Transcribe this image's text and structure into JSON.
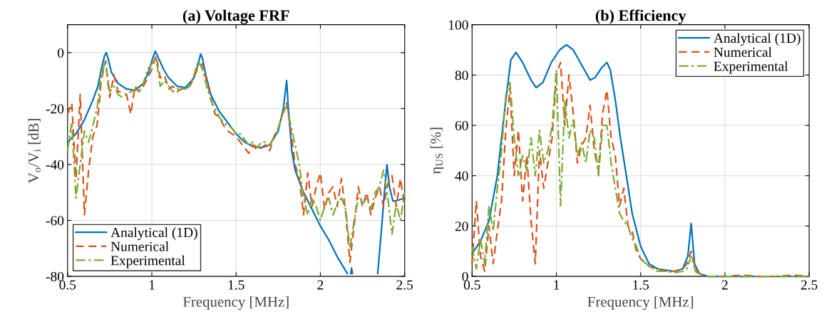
{
  "chart_data": [
    {
      "type": "line",
      "title": "(a) Voltage FRF",
      "xlabel": "Frequency [MHz]",
      "ylabel": "V$_{o}$/V$_{i}$ [dB]",
      "xlim": [
        0.5,
        2.5
      ],
      "xticks": [
        0.5,
        1,
        1.5,
        2,
        2.5
      ],
      "ylim": [
        -80,
        10
      ],
      "yticks": [
        -80,
        -60,
        -40,
        -20,
        0
      ],
      "grid": true,
      "legend": "bottom left",
      "series": [
        {
          "name": "Analytical (1D)",
          "color": "#0072bd",
          "line_style": "solid",
          "x": [
            0.5,
            0.55,
            0.6,
            0.65,
            0.68,
            0.7,
            0.72,
            0.73,
            0.74,
            0.76,
            0.8,
            0.85,
            0.9,
            0.95,
            0.98,
            1.0,
            1.02,
            1.04,
            1.07,
            1.1,
            1.15,
            1.2,
            1.25,
            1.27,
            1.29,
            1.3,
            1.32,
            1.35,
            1.4,
            1.45,
            1.5,
            1.55,
            1.6,
            1.65,
            1.7,
            1.75,
            1.78,
            1.8,
            1.81,
            1.83,
            1.85,
            1.9,
            1.95,
            2.0,
            2.05,
            2.1,
            2.15,
            2.16,
            2.17,
            2.18,
            2.185,
            2.19,
            2.2,
            2.34,
            2.36,
            2.38,
            2.395,
            2.41,
            2.43,
            2.45,
            2.5
          ],
          "values": [
            -32,
            -29,
            -24,
            -17,
            -12,
            -6,
            -1,
            0,
            -2,
            -7,
            -11,
            -13,
            -13.5,
            -11,
            -7,
            -3,
            0.5,
            -2,
            -6,
            -9,
            -12,
            -12.5,
            -9,
            -5,
            -0.5,
            -2,
            -8,
            -15,
            -21,
            -25,
            -29,
            -32,
            -33.5,
            -34,
            -33,
            -28,
            -20,
            -10,
            -20,
            -35,
            -42,
            -50,
            -56,
            -62,
            -67,
            -73,
            -78,
            -79,
            null,
            -79,
            -77,
            -79,
            null,
            -79,
            -65,
            -50,
            -40,
            -48,
            -53,
            -53,
            -52
          ]
        },
        {
          "name": "Numerical",
          "color": "#d95319",
          "line_style": "dashed",
          "x": [
            0.5,
            0.525,
            0.55,
            0.575,
            0.6,
            0.625,
            0.65,
            0.675,
            0.7,
            0.725,
            0.75,
            0.775,
            0.8,
            0.825,
            0.85,
            0.875,
            0.9,
            0.925,
            0.95,
            0.975,
            1.0,
            1.025,
            1.05,
            1.075,
            1.1,
            1.125,
            1.15,
            1.175,
            1.2,
            1.225,
            1.25,
            1.275,
            1.3,
            1.325,
            1.35,
            1.375,
            1.4,
            1.425,
            1.45,
            1.475,
            1.5,
            1.525,
            1.55,
            1.575,
            1.6,
            1.625,
            1.65,
            1.675,
            1.7,
            1.725,
            1.75,
            1.775,
            1.8,
            1.825,
            1.85,
            1.875,
            1.9,
            1.925,
            1.95,
            1.975,
            2.0,
            2.025,
            2.05,
            2.075,
            2.1,
            2.125,
            2.15,
            2.175,
            2.2,
            2.225,
            2.25,
            2.275,
            2.3,
            2.325,
            2.35,
            2.375,
            2.4,
            2.425,
            2.45,
            2.475,
            2.5
          ],
          "values": [
            -22,
            -18,
            -45,
            -15,
            -58,
            -42,
            -30,
            -26,
            -10,
            -3,
            -16,
            -8,
            -14,
            -14,
            -15,
            -22,
            -12,
            -14,
            -12,
            -9,
            -6,
            -1,
            -9,
            -8,
            -13,
            -12,
            -14,
            -13,
            -13,
            -12,
            -9,
            -5,
            -4,
            -10,
            -16,
            -22,
            -23,
            -26,
            -28,
            -29,
            -30,
            -32,
            -34,
            -36,
            -33,
            -35,
            -34,
            -33,
            -35,
            -30,
            -27,
            -22,
            -18,
            -28,
            -40,
            -45,
            -58,
            -43,
            -55,
            -48,
            -43,
            -56,
            -50,
            -48,
            -55,
            -45,
            -57,
            -75,
            -62,
            -48,
            -55,
            -50,
            -58,
            -52,
            -48,
            -55,
            -47,
            -44,
            -55,
            -45,
            -55
          ]
        },
        {
          "name": "Experimental",
          "color": "#77ac30",
          "line_style": "dashdot",
          "x": [
            0.5,
            0.525,
            0.55,
            0.575,
            0.6,
            0.625,
            0.65,
            0.675,
            0.7,
            0.725,
            0.75,
            0.775,
            0.8,
            0.825,
            0.85,
            0.875,
            0.9,
            0.925,
            0.95,
            0.975,
            1.0,
            1.025,
            1.05,
            1.075,
            1.1,
            1.125,
            1.15,
            1.175,
            1.2,
            1.225,
            1.25,
            1.275,
            1.3,
            1.325,
            1.35,
            1.375,
            1.4,
            1.425,
            1.45,
            1.475,
            1.5,
            1.525,
            1.55,
            1.575,
            1.6,
            1.625,
            1.65,
            1.675,
            1.7,
            1.725,
            1.75,
            1.775,
            1.8,
            1.825,
            1.85,
            1.875,
            1.9,
            1.925,
            1.95,
            1.975,
            2.0,
            2.025,
            2.05,
            2.075,
            2.1,
            2.125,
            2.15,
            2.175,
            2.2,
            2.225,
            2.25,
            2.275,
            2.3,
            2.325,
            2.35,
            2.375,
            2.4,
            2.425,
            2.45,
            2.475,
            2.5
          ],
          "values": [
            -35,
            -25,
            -52,
            -40,
            -28,
            -32,
            -26,
            -20,
            -8,
            -3,
            -14,
            -12,
            -15,
            -16,
            -15,
            -14,
            -13,
            -14,
            -11,
            -6,
            -4,
            -2,
            -12,
            -10,
            -12,
            -14,
            -13,
            -13,
            -13,
            -12,
            -8,
            -3,
            -6,
            -12,
            -17,
            -20,
            -23,
            -25,
            -26,
            -27,
            -29,
            -29,
            -31,
            -33,
            -32,
            -34,
            -32,
            -32,
            -33,
            -30,
            -27,
            -22,
            -19,
            -26,
            -33,
            -40,
            -52,
            -58,
            -52,
            -55,
            -60,
            -55,
            -52,
            -58,
            -54,
            -52,
            -56,
            -70,
            -60,
            -52,
            -54,
            -52,
            -56,
            -50,
            -48,
            -42,
            -52,
            -65,
            -54,
            -60,
            -50
          ]
        }
      ]
    },
    {
      "type": "line",
      "title": "(b) Efficiency",
      "xlabel": "Frequency [MHz]",
      "ylabel": "η$_{US}$ [%]",
      "xlim": [
        0.5,
        2.5
      ],
      "xticks": [
        0.5,
        1,
        1.5,
        2,
        2.5
      ],
      "ylim": [
        0,
        100
      ],
      "yticks": [
        0,
        20,
        40,
        60,
        80,
        100
      ],
      "grid": true,
      "legend": "top right",
      "series": [
        {
          "name": "Analytical (1D)",
          "color": "#0072bd",
          "line_style": "solid",
          "x": [
            0.5,
            0.55,
            0.6,
            0.65,
            0.7,
            0.73,
            0.76,
            0.8,
            0.85,
            0.88,
            0.92,
            0.97,
            1.02,
            1.06,
            1.1,
            1.15,
            1.2,
            1.23,
            1.27,
            1.3,
            1.32,
            1.35,
            1.38,
            1.42,
            1.45,
            1.5,
            1.55,
            1.6,
            1.7,
            1.75,
            1.78,
            1.8,
            1.82,
            1.85,
            1.9,
            2.0,
            2.5
          ],
          "values": [
            9,
            14,
            22,
            40,
            70,
            86,
            89,
            85,
            78,
            75,
            77,
            85,
            90,
            92,
            90,
            84,
            78,
            79,
            83,
            85,
            82,
            70,
            55,
            38,
            25,
            12,
            5,
            3,
            2,
            3,
            8,
            21,
            5,
            1,
            0,
            0,
            0
          ]
        },
        {
          "name": "Numerical",
          "color": "#d95319",
          "line_style": "dashed",
          "x": [
            0.5,
            0.525,
            0.55,
            0.575,
            0.6,
            0.625,
            0.65,
            0.675,
            0.7,
            0.725,
            0.75,
            0.775,
            0.8,
            0.825,
            0.85,
            0.875,
            0.9,
            0.925,
            0.95,
            0.975,
            1.0,
            1.025,
            1.05,
            1.075,
            1.1,
            1.125,
            1.15,
            1.175,
            1.2,
            1.225,
            1.25,
            1.275,
            1.3,
            1.325,
            1.35,
            1.375,
            1.4,
            1.425,
            1.45,
            1.475,
            1.5,
            1.55,
            1.6,
            1.65,
            1.7,
            1.75,
            1.775,
            1.8,
            1.825,
            1.85,
            1.9,
            2.0,
            2.1,
            2.2,
            2.3,
            2.4,
            2.5
          ],
          "values": [
            5,
            30,
            8,
            2,
            20,
            5,
            18,
            30,
            58,
            75,
            40,
            58,
            30,
            48,
            22,
            5,
            50,
            35,
            45,
            55,
            80,
            85,
            60,
            80,
            65,
            45,
            52,
            55,
            68,
            50,
            42,
            65,
            74,
            55,
            48,
            28,
            35,
            20,
            18,
            10,
            7,
            4,
            3,
            2,
            2,
            3,
            5,
            10,
            3,
            1,
            0,
            0,
            0.5,
            0,
            0,
            0.5,
            0
          ]
        },
        {
          "name": "Experimental",
          "color": "#77ac30",
          "line_style": "dashdot",
          "x": [
            0.5,
            0.525,
            0.55,
            0.575,
            0.6,
            0.625,
            0.65,
            0.675,
            0.7,
            0.725,
            0.75,
            0.775,
            0.8,
            0.825,
            0.85,
            0.875,
            0.9,
            0.925,
            0.95,
            0.975,
            1.0,
            1.025,
            1.05,
            1.075,
            1.1,
            1.125,
            1.15,
            1.175,
            1.2,
            1.225,
            1.25,
            1.275,
            1.3,
            1.325,
            1.35,
            1.375,
            1.4,
            1.425,
            1.45,
            1.475,
            1.5,
            1.55,
            1.6,
            1.65,
            1.7,
            1.75,
            1.775,
            1.8,
            1.825,
            1.85,
            1.9,
            2.0,
            2.5
          ],
          "values": [
            12,
            3,
            15,
            5,
            28,
            18,
            35,
            50,
            72,
            77,
            55,
            40,
            48,
            42,
            55,
            40,
            58,
            45,
            50,
            60,
            82,
            28,
            70,
            55,
            62,
            48,
            53,
            45,
            58,
            55,
            40,
            60,
            60,
            45,
            35,
            25,
            22,
            20,
            15,
            12,
            7,
            4,
            2,
            2,
            1.5,
            2,
            3,
            8,
            2,
            0.5,
            0,
            0,
            0
          ]
        }
      ]
    }
  ]
}
